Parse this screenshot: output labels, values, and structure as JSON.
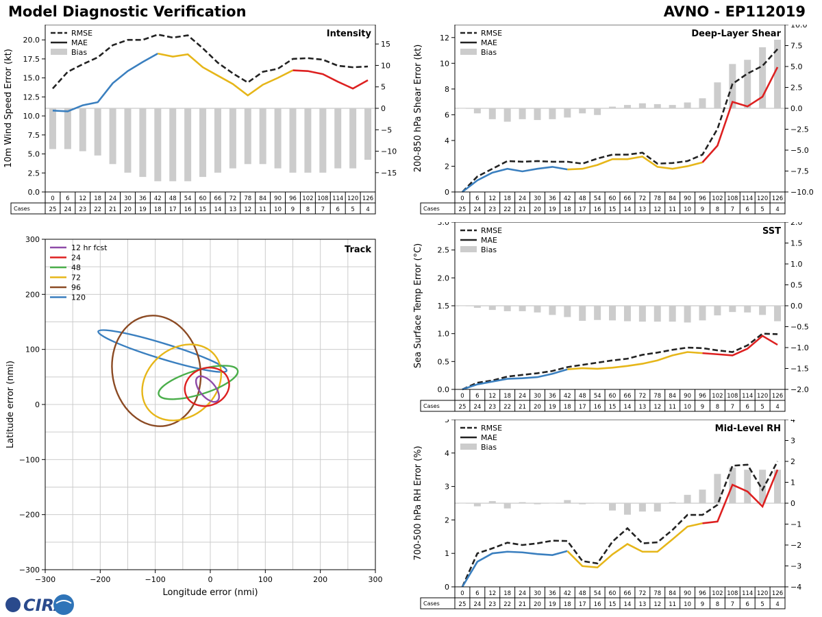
{
  "page": {
    "title": "Model Diagnostic Verification",
    "model_label": "AVNO - EP112019",
    "logo_text": "CIRA"
  },
  "colors": {
    "rmse": "#222222",
    "mae_0": "#3a7fbf",
    "mae_1": "#e6b619",
    "mae_2": "#dd2020",
    "bias": "#cccccc",
    "grid": "#cccccc"
  },
  "legend": {
    "rmse": "RMSE",
    "mae": "MAE",
    "bias": "Bias",
    "cases": "Cases"
  },
  "chart_data": [
    {
      "id": "intensity",
      "type": "line",
      "title": "Intensity",
      "ylabel": "10m Wind Speed Error (kt)",
      "ylim": [
        0,
        22
      ],
      "yticks": [
        "0.0",
        "2.5",
        "5.0",
        "7.5",
        "10.0",
        "12.5",
        "15.0",
        "17.5",
        "20.0"
      ],
      "y2lim": [
        -19.5,
        19.5
      ],
      "y2ticks": [
        "−15",
        "−10",
        "−5",
        "0",
        "5",
        "10",
        "15"
      ],
      "hours": [
        "0",
        "6",
        "12",
        "18",
        "24",
        "30",
        "36",
        "42",
        "48",
        "54",
        "60",
        "66",
        "72",
        "78",
        "84",
        "90",
        "96",
        "102",
        "108",
        "114",
        "120",
        "126"
      ],
      "cases": [
        "25",
        "24",
        "23",
        "22",
        "21",
        "20",
        "19",
        "18",
        "17",
        "16",
        "15",
        "14",
        "13",
        "12",
        "11",
        "10",
        "9",
        "8",
        "7",
        "6",
        "5",
        "4"
      ],
      "rmse": [
        13.6,
        15.8,
        16.8,
        17.7,
        19.3,
        20.0,
        20.0,
        20.7,
        20.3,
        20.6,
        18.9,
        17.0,
        15.6,
        14.4,
        15.8,
        16.2,
        17.5,
        17.6,
        17.4,
        16.6,
        16.4,
        16.5
      ],
      "mae": [
        10.7,
        10.6,
        11.4,
        11.8,
        14.3,
        15.9,
        17.1,
        18.2,
        17.8,
        18.1,
        16.4,
        15.3,
        14.2,
        12.7,
        14.1,
        15.0,
        16.0,
        15.9,
        15.5,
        14.5,
        13.6,
        14.7
      ],
      "bias": [
        -9.5,
        -9.5,
        -10.0,
        -11.0,
        -13.0,
        -15.0,
        -16.0,
        -17.0,
        -17.0,
        -17.0,
        -16.0,
        -15.0,
        -14.0,
        -13.0,
        -13.0,
        -14.0,
        -15.0,
        -15.0,
        -15.0,
        -14.0,
        -14.0,
        -12.0
      ]
    },
    {
      "id": "shear",
      "type": "line",
      "title": "Deep-Layer Shear",
      "ylabel": "200-850 hPa Shear Error (kt)",
      "ylim": [
        0,
        13
      ],
      "yticks": [
        "0",
        "2",
        "4",
        "6",
        "8",
        "10",
        "12"
      ],
      "y2lim": [
        -10,
        10
      ],
      "y2ticks": [
        "−10.0",
        "−7.5",
        "−5.0",
        "−2.5",
        "0.0",
        "2.5",
        "5.0",
        "7.5",
        "10.0"
      ],
      "hours": [
        "0",
        "6",
        "12",
        "18",
        "24",
        "30",
        "36",
        "42",
        "48",
        "54",
        "60",
        "66",
        "72",
        "78",
        "84",
        "90",
        "96",
        "102",
        "108",
        "114",
        "120",
        "126"
      ],
      "cases": [
        "25",
        "24",
        "23",
        "22",
        "21",
        "20",
        "19",
        "18",
        "17",
        "16",
        "15",
        "14",
        "13",
        "12",
        "11",
        "10",
        "9",
        "8",
        "7",
        "6",
        "5",
        "4"
      ],
      "rmse": [
        0.0,
        1.2,
        1.8,
        2.4,
        2.35,
        2.4,
        2.35,
        2.35,
        2.2,
        2.6,
        2.9,
        2.9,
        3.05,
        2.2,
        2.25,
        2.4,
        2.9,
        4.9,
        8.4,
        9.2,
        9.8,
        11.1
      ],
      "mae": [
        0.0,
        0.9,
        1.5,
        1.8,
        1.6,
        1.8,
        1.95,
        1.75,
        1.8,
        2.1,
        2.55,
        2.55,
        2.75,
        1.95,
        1.8,
        2.0,
        2.3,
        3.6,
        7.0,
        6.65,
        7.4,
        9.7
      ],
      "bias": [
        0.0,
        -0.6,
        -1.3,
        -1.6,
        -1.3,
        -1.4,
        -1.3,
        -1.1,
        -0.6,
        -0.8,
        0.2,
        0.4,
        0.6,
        0.5,
        0.4,
        0.7,
        1.2,
        3.1,
        5.3,
        5.8,
        7.3,
        8.2
      ]
    },
    {
      "id": "sst",
      "type": "line",
      "title": "SST",
      "ylabel": "Sea Surface Temp Error (°C)",
      "ylim": [
        0,
        3
      ],
      "yticks": [
        "0.0",
        "0.5",
        "1.0",
        "1.5",
        "2.0",
        "2.5",
        "3.0"
      ],
      "y2lim": [
        -2,
        2
      ],
      "y2ticks": [
        "−2.0",
        "−1.5",
        "−1.0",
        "−0.5",
        "0.0",
        "0.5",
        "1.0",
        "1.5",
        "2.0"
      ],
      "hours": [
        "0",
        "6",
        "12",
        "18",
        "24",
        "30",
        "36",
        "42",
        "48",
        "54",
        "60",
        "66",
        "72",
        "78",
        "84",
        "90",
        "96",
        "102",
        "108",
        "114",
        "120",
        "126"
      ],
      "cases": [
        "25",
        "24",
        "23",
        "22",
        "21",
        "20",
        "19",
        "18",
        "17",
        "16",
        "15",
        "14",
        "13",
        "12",
        "11",
        "10",
        "9",
        "8",
        "7",
        "6",
        "5",
        "4"
      ],
      "rmse": [
        0.0,
        0.12,
        0.16,
        0.23,
        0.26,
        0.29,
        0.33,
        0.4,
        0.44,
        0.48,
        0.52,
        0.55,
        0.62,
        0.66,
        0.71,
        0.75,
        0.74,
        0.7,
        0.67,
        0.79,
        1.0,
        0.99
      ],
      "mae": [
        0.0,
        0.09,
        0.14,
        0.19,
        0.2,
        0.22,
        0.28,
        0.36,
        0.38,
        0.37,
        0.39,
        0.42,
        0.46,
        0.52,
        0.61,
        0.67,
        0.65,
        0.63,
        0.61,
        0.73,
        0.96,
        0.8
      ],
      "bias": [
        0.0,
        -0.05,
        -0.1,
        -0.13,
        -0.13,
        -0.16,
        -0.22,
        -0.27,
        -0.36,
        -0.34,
        -0.35,
        -0.37,
        -0.38,
        -0.38,
        -0.38,
        -0.4,
        -0.35,
        -0.23,
        -0.15,
        -0.16,
        -0.22,
        -0.37
      ]
    },
    {
      "id": "rh",
      "type": "line",
      "title": "Mid-Level RH",
      "ylabel": "700-500 hPa RH Error (%)",
      "ylim": [
        0,
        5
      ],
      "yticks": [
        "0",
        "1",
        "2",
        "3",
        "4",
        "5"
      ],
      "y2lim": [
        -4,
        4
      ],
      "y2ticks": [
        "−4",
        "−3",
        "−2",
        "−1",
        "0",
        "1",
        "2",
        "3",
        "4"
      ],
      "hours": [
        "0",
        "6",
        "12",
        "18",
        "24",
        "30",
        "36",
        "42",
        "48",
        "54",
        "60",
        "66",
        "72",
        "78",
        "84",
        "90",
        "96",
        "102",
        "108",
        "114",
        "120",
        "126"
      ],
      "cases": [
        "25",
        "24",
        "23",
        "22",
        "21",
        "20",
        "19",
        "18",
        "17",
        "16",
        "15",
        "14",
        "13",
        "12",
        "11",
        "10",
        "9",
        "8",
        "7",
        "6",
        "5",
        "4"
      ],
      "rmse": [
        0.0,
        1.0,
        1.15,
        1.32,
        1.25,
        1.3,
        1.38,
        1.37,
        0.77,
        0.7,
        1.35,
        1.75,
        1.3,
        1.33,
        1.7,
        2.15,
        2.15,
        2.45,
        3.62,
        3.65,
        2.9,
        3.75
      ],
      "mae": [
        0.0,
        0.75,
        1.0,
        1.05,
        1.03,
        0.98,
        0.95,
        1.07,
        0.62,
        0.58,
        0.97,
        1.28,
        1.05,
        1.05,
        1.42,
        1.8,
        1.9,
        1.95,
        3.05,
        2.85,
        2.4,
        3.5
      ],
      "bias": [
        0.0,
        -0.15,
        0.1,
        -0.25,
        0.05,
        -0.05,
        0.0,
        0.15,
        -0.05,
        0.0,
        -0.35,
        -0.55,
        -0.4,
        -0.4,
        0.05,
        0.4,
        0.65,
        1.4,
        1.7,
        1.6,
        1.6,
        1.6
      ]
    },
    {
      "id": "track",
      "type": "scatter",
      "title": "Track",
      "xlabel": "Longitude error (nmi)",
      "ylabel": "Latitude error (nmi)",
      "xlim": [
        -300,
        300
      ],
      "ylim": [
        -300,
        300
      ],
      "ticks": [
        "−300",
        "−200",
        "−100",
        "0",
        "100",
        "200",
        "300"
      ],
      "ellipses": [
        {
          "label": "12 hr fcst",
          "color": "#8e4ba8",
          "cx": -5,
          "cy": 28,
          "rx": 14,
          "ry": 28,
          "angle": -40
        },
        {
          "label": "24",
          "color": "#dd2020",
          "cx": -6,
          "cy": 32,
          "rx": 41,
          "ry": 34,
          "angle": -20
        },
        {
          "label": "48",
          "color": "#4aae4a",
          "cx": -22,
          "cy": 40,
          "rx": 75,
          "ry": 22,
          "angle": -17
        },
        {
          "label": "72",
          "color": "#e6b619",
          "cx": -52,
          "cy": 40,
          "rx": 78,
          "ry": 62,
          "angle": -40
        },
        {
          "label": "96",
          "color": "#8b4a23",
          "cx": -98,
          "cy": 61,
          "rx": 80,
          "ry": 101,
          "angle": -10
        },
        {
          "label": "120",
          "color": "#3a7fbf",
          "cx": -87,
          "cy": 97,
          "rx": 122,
          "ry": 14,
          "angle": 17
        }
      ]
    }
  ]
}
